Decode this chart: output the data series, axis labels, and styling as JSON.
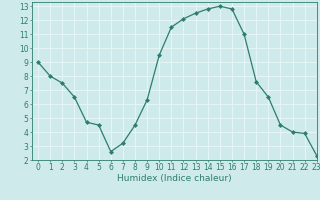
{
  "x": [
    0,
    1,
    2,
    3,
    4,
    5,
    6,
    7,
    8,
    9,
    10,
    11,
    12,
    13,
    14,
    15,
    16,
    17,
    18,
    19,
    20,
    21,
    22,
    23
  ],
  "y": [
    9.0,
    8.0,
    7.5,
    6.5,
    4.7,
    4.5,
    2.6,
    3.2,
    4.5,
    6.3,
    9.5,
    11.5,
    12.1,
    12.5,
    12.8,
    13.0,
    12.8,
    11.0,
    7.6,
    6.5,
    4.5,
    4.0,
    3.9,
    2.3
  ],
  "xlabel": "Humidex (Indice chaleur)",
  "xlim": [
    -0.5,
    23
  ],
  "ylim": [
    2,
    13.3
  ],
  "yticks": [
    2,
    3,
    4,
    5,
    6,
    7,
    8,
    9,
    10,
    11,
    12,
    13
  ],
  "xticks": [
    0,
    1,
    2,
    3,
    4,
    5,
    6,
    7,
    8,
    9,
    10,
    11,
    12,
    13,
    14,
    15,
    16,
    17,
    18,
    19,
    20,
    21,
    22,
    23
  ],
  "line_color": "#2e7d6e",
  "marker": "D",
  "marker_size": 2.0,
  "bg_color": "#ceeaea",
  "grid_color": "#e8f8f8",
  "label_color": "#2e7d6e",
  "tick_color": "#2e7d6e",
  "xlabel_fontsize": 6.5,
  "tick_fontsize": 5.5,
  "linewidth": 0.9
}
